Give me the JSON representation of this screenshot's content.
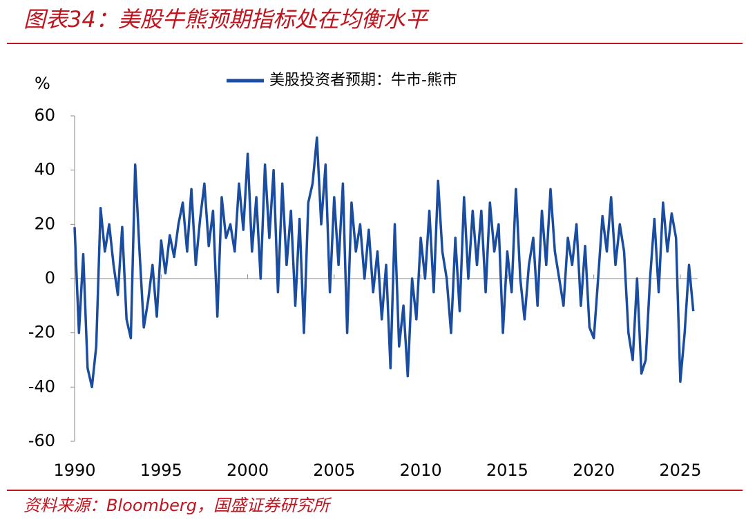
{
  "chart_data": {
    "type": "line",
    "title": "图表34：美股牛熊预期指标处在均衡水平",
    "source": "资料来源：Bloomberg，国盛证券研究所",
    "y_label": "%",
    "x": [
      1990,
      1990.25,
      1990.5,
      1990.75,
      1991,
      1991.25,
      1991.5,
      1991.75,
      1992,
      1992.25,
      1992.5,
      1992.75,
      1993,
      1993.25,
      1993.5,
      1993.75,
      1994,
      1994.25,
      1994.5,
      1994.75,
      1995,
      1995.25,
      1995.5,
      1995.75,
      1996,
      1996.25,
      1996.5,
      1996.75,
      1997,
      1997.25,
      1997.5,
      1997.75,
      1998,
      1998.25,
      1998.5,
      1998.75,
      1999,
      1999.25,
      1999.5,
      1999.75,
      2000,
      2000.25,
      2000.5,
      2000.75,
      2001,
      2001.25,
      2001.5,
      2001.75,
      2002,
      2002.25,
      2002.5,
      2002.75,
      2003,
      2003.25,
      2003.5,
      2003.75,
      2004,
      2004.25,
      2004.5,
      2004.75,
      2005,
      2005.25,
      2005.5,
      2005.75,
      2006,
      2006.25,
      2006.5,
      2006.75,
      2007,
      2007.25,
      2007.5,
      2007.75,
      2008,
      2008.25,
      2008.5,
      2008.75,
      2009,
      2009.25,
      2009.5,
      2009.75,
      2010,
      2010.25,
      2010.5,
      2010.75,
      2011,
      2011.25,
      2011.5,
      2011.75,
      2012,
      2012.25,
      2012.5,
      2012.75,
      2013,
      2013.25,
      2013.5,
      2013.75,
      2014,
      2014.25,
      2014.5,
      2014.75,
      2015,
      2015.25,
      2015.5,
      2015.75,
      2016,
      2016.25,
      2016.5,
      2016.75,
      2017,
      2017.25,
      2017.5,
      2017.75,
      2018,
      2018.25,
      2018.5,
      2018.75,
      2019,
      2019.25,
      2019.5,
      2019.75,
      2020,
      2020.25,
      2020.5,
      2020.75,
      2021,
      2021.25,
      2021.5,
      2021.75,
      2022,
      2022.25,
      2022.5,
      2022.75,
      2023,
      2023.25,
      2023.5,
      2023.75,
      2024,
      2024.25,
      2024.5,
      2024.75,
      2025,
      2025.25,
      2025.5,
      2025.75
    ],
    "series": [
      {
        "name": "美股投资者预期：牛市-熊市",
        "color": "#1a4ca0",
        "values": [
          19,
          -20,
          9,
          -33,
          -40,
          -25,
          26,
          10,
          20,
          5,
          -6,
          19,
          -15,
          -22,
          42,
          10,
          -18,
          -8,
          5,
          -14,
          14,
          2,
          16,
          8,
          20,
          28,
          10,
          33,
          5,
          22,
          35,
          12,
          25,
          -14,
          30,
          15,
          20,
          10,
          35,
          18,
          46,
          10,
          30,
          0,
          42,
          15,
          40,
          -5,
          35,
          5,
          25,
          -10,
          22,
          -20,
          28,
          35,
          52,
          20,
          42,
          -5,
          30,
          5,
          35,
          -20,
          28,
          10,
          20,
          0,
          18,
          -5,
          10,
          -15,
          5,
          -33,
          20,
          -25,
          -10,
          -36,
          0,
          -15,
          15,
          0,
          25,
          -5,
          36,
          10,
          0,
          -20,
          15,
          -12,
          30,
          0,
          25,
          5,
          25,
          -5,
          28,
          10,
          20,
          -20,
          10,
          -5,
          33,
          0,
          -15,
          5,
          15,
          -10,
          25,
          5,
          33,
          10,
          0,
          -10,
          15,
          5,
          20,
          -10,
          12,
          -18,
          -22,
          0,
          23,
          10,
          30,
          5,
          20,
          10,
          -20,
          -30,
          0,
          -35,
          -30,
          0,
          22,
          -5,
          28,
          10,
          24,
          15,
          -38,
          -20,
          5,
          -12
        ]
      }
    ],
    "xlim": [
      1990,
      2026
    ],
    "xticks": [
      1990,
      1995,
      2000,
      2005,
      2010,
      2015,
      2020,
      2025
    ],
    "ylim": [
      -60,
      60
    ],
    "yticks": [
      -60,
      -40,
      -20,
      0,
      20,
      40,
      60
    ]
  }
}
